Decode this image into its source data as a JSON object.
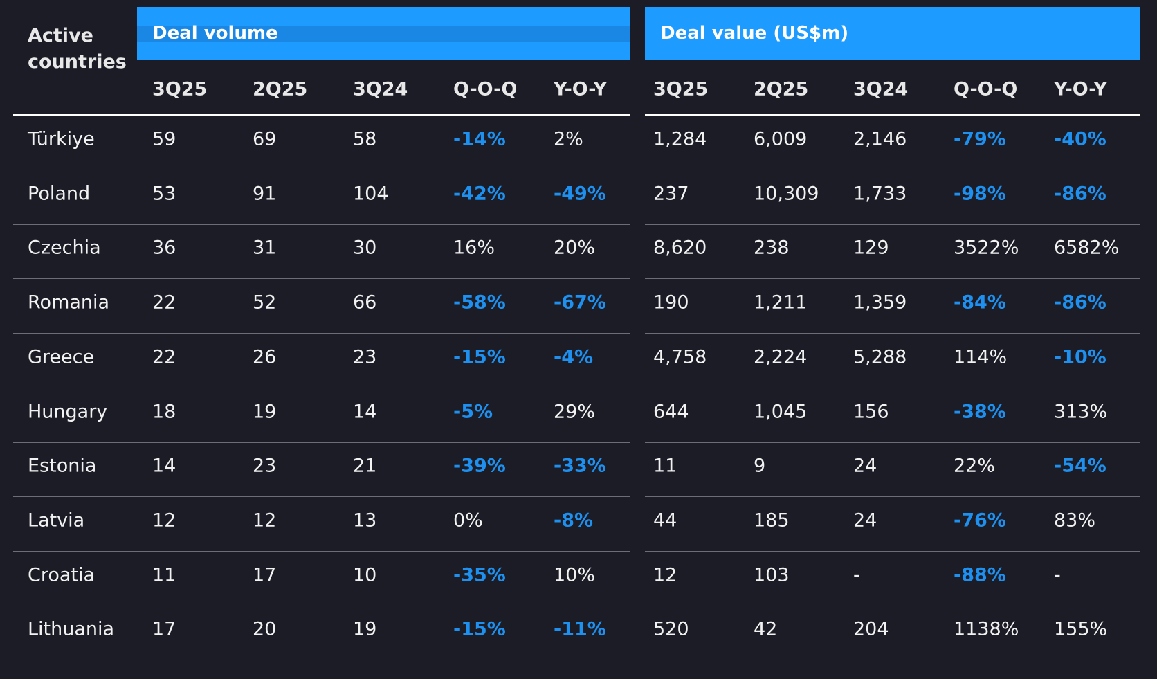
{
  "header": {
    "title": "Active countries",
    "groups": [
      "Deal volume",
      "Deal value (US$m)"
    ],
    "columns": [
      "3Q25",
      "2Q25",
      "3Q24",
      "Q-O-Q",
      "Y-O-Y",
      "3Q25",
      "2Q25",
      "3Q24",
      "Q-O-Q",
      "Y-O-Y"
    ]
  },
  "table": {
    "rows": [
      [
        "Türkiye",
        "59",
        "69",
        "58",
        "-14%",
        "2%",
        "1,284",
        "6,009",
        "2,146",
        "-79%",
        "-40%"
      ],
      [
        "Poland",
        "53",
        "91",
        "104",
        "-42%",
        "-49%",
        "237",
        "10,309",
        "1,733",
        "-98%",
        "-86%"
      ],
      [
        "Czechia",
        "36",
        "31",
        "30",
        "16%",
        "20%",
        "8,620",
        "238",
        "129",
        "3522%",
        "6582%"
      ],
      [
        "Romania",
        "22",
        "52",
        "66",
        "-58%",
        "-67%",
        "190",
        "1,211",
        "1,359",
        "-84%",
        "-86%"
      ],
      [
        "Greece",
        "22",
        "26",
        "23",
        "-15%",
        "-4%",
        "4,758",
        "2,224",
        "5,288",
        "114%",
        "-10%"
      ],
      [
        "Hungary",
        "18",
        "19",
        "14",
        "-5%",
        "29%",
        "644",
        "1,045",
        "156",
        "-38%",
        "313%"
      ],
      [
        "Estonia",
        "14",
        "23",
        "21",
        "-39%",
        "-33%",
        "11",
        "9",
        "24",
        "22%",
        "-54%"
      ],
      [
        "Latvia",
        "12",
        "12",
        "13",
        "0%",
        "-8%",
        "44",
        "185",
        "24",
        "-76%",
        "83%"
      ],
      [
        "Croatia",
        "11",
        "17",
        "10",
        "-35%",
        "10%",
        "12",
        "103",
        "-",
        "-88%",
        "-"
      ],
      [
        "Lithuania",
        "17",
        "20",
        "19",
        "-15%",
        "-11%",
        "520",
        "42",
        "204",
        "1138%",
        "155%"
      ]
    ]
  }
}
